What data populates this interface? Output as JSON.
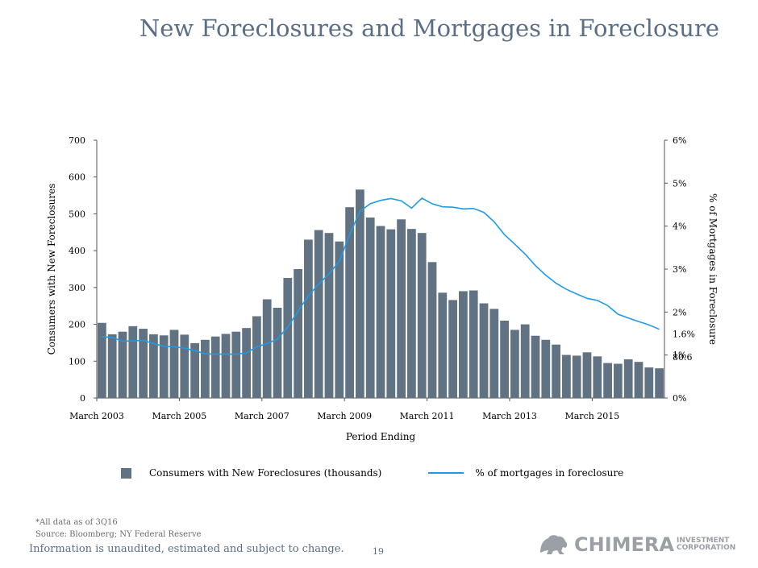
{
  "page": {
    "title": "New Foreclosures and Mortgages in Foreclosure",
    "footnote": "*All data as of 3Q16",
    "source": "Source: Bloomberg; NY Federal Reserve",
    "disclaimer": "Information is unaudited, estimated and subject to change.",
    "page_number": "19",
    "logo_word": "CHIMERA",
    "logo_sub_1": "INVESTMENT",
    "logo_sub_2": "CORPORATION",
    "logo_icon": "lion-icon"
  },
  "chart_data": {
    "type": "bar",
    "xlabel": "Period Ending",
    "ylabel": "Consumers with New Foreclosures",
    "y2label": "% of Mortgages in Foreclosure",
    "ylim": [
      0,
      700
    ],
    "y2lim": [
      0,
      6
    ],
    "yticks": [
      "0",
      "100",
      "200",
      "300",
      "400",
      "500",
      "600",
      "700"
    ],
    "y2ticks": [
      "0%",
      "1%",
      "2%",
      "3%",
      "4%",
      "5%",
      "6%"
    ],
    "xtick_labels": [
      {
        "label": "March 2003",
        "index": 0
      },
      {
        "label": "March 2005",
        "index": 8
      },
      {
        "label": "March 2007",
        "index": 16
      },
      {
        "label": "March 2009",
        "index": 24
      },
      {
        "label": "March 2011",
        "index": 32
      },
      {
        "label": "March 2013",
        "index": 40
      },
      {
        "label": "March 2015",
        "index": 48
      }
    ],
    "annotations": {
      "last_bar": "80.6",
      "last_line": "1.6%"
    },
    "colors": {
      "bar": "#617282",
      "line": "#1e9be8",
      "title": "#5a6e86"
    },
    "series": [
      {
        "name": "Consumers with New Foreclosures (thousands)",
        "kind": "bar",
        "values": [
          204,
          173,
          180,
          195,
          188,
          173,
          170,
          185,
          172,
          149,
          158,
          167,
          174,
          180,
          190,
          222,
          268,
          245,
          326,
          350,
          430,
          456,
          448,
          425,
          518,
          566,
          490,
          467,
          458,
          485,
          459,
          448,
          369,
          286,
          266,
          290,
          292,
          257,
          242,
          210,
          185,
          200,
          169,
          158,
          145,
          117,
          115,
          124,
          113,
          95,
          93,
          105,
          98,
          83,
          80.6
        ]
      },
      {
        "name": "% of mortgages in  foreclosure",
        "kind": "line",
        "values": [
          1.43,
          1.41,
          1.32,
          1.33,
          1.34,
          1.27,
          1.2,
          1.19,
          1.16,
          1.1,
          1.03,
          1.02,
          1.02,
          1.02,
          1.05,
          1.19,
          1.27,
          1.37,
          1.65,
          2.02,
          2.38,
          2.65,
          2.89,
          3.18,
          3.8,
          4.35,
          4.52,
          4.6,
          4.64,
          4.59,
          4.42,
          4.65,
          4.52,
          4.45,
          4.44,
          4.4,
          4.41,
          4.32,
          4.1,
          3.8,
          3.58,
          3.35,
          3.08,
          2.86,
          2.67,
          2.53,
          2.42,
          2.32,
          2.27,
          2.15,
          1.95,
          1.86,
          1.78,
          1.7,
          1.6
        ]
      }
    ]
  }
}
